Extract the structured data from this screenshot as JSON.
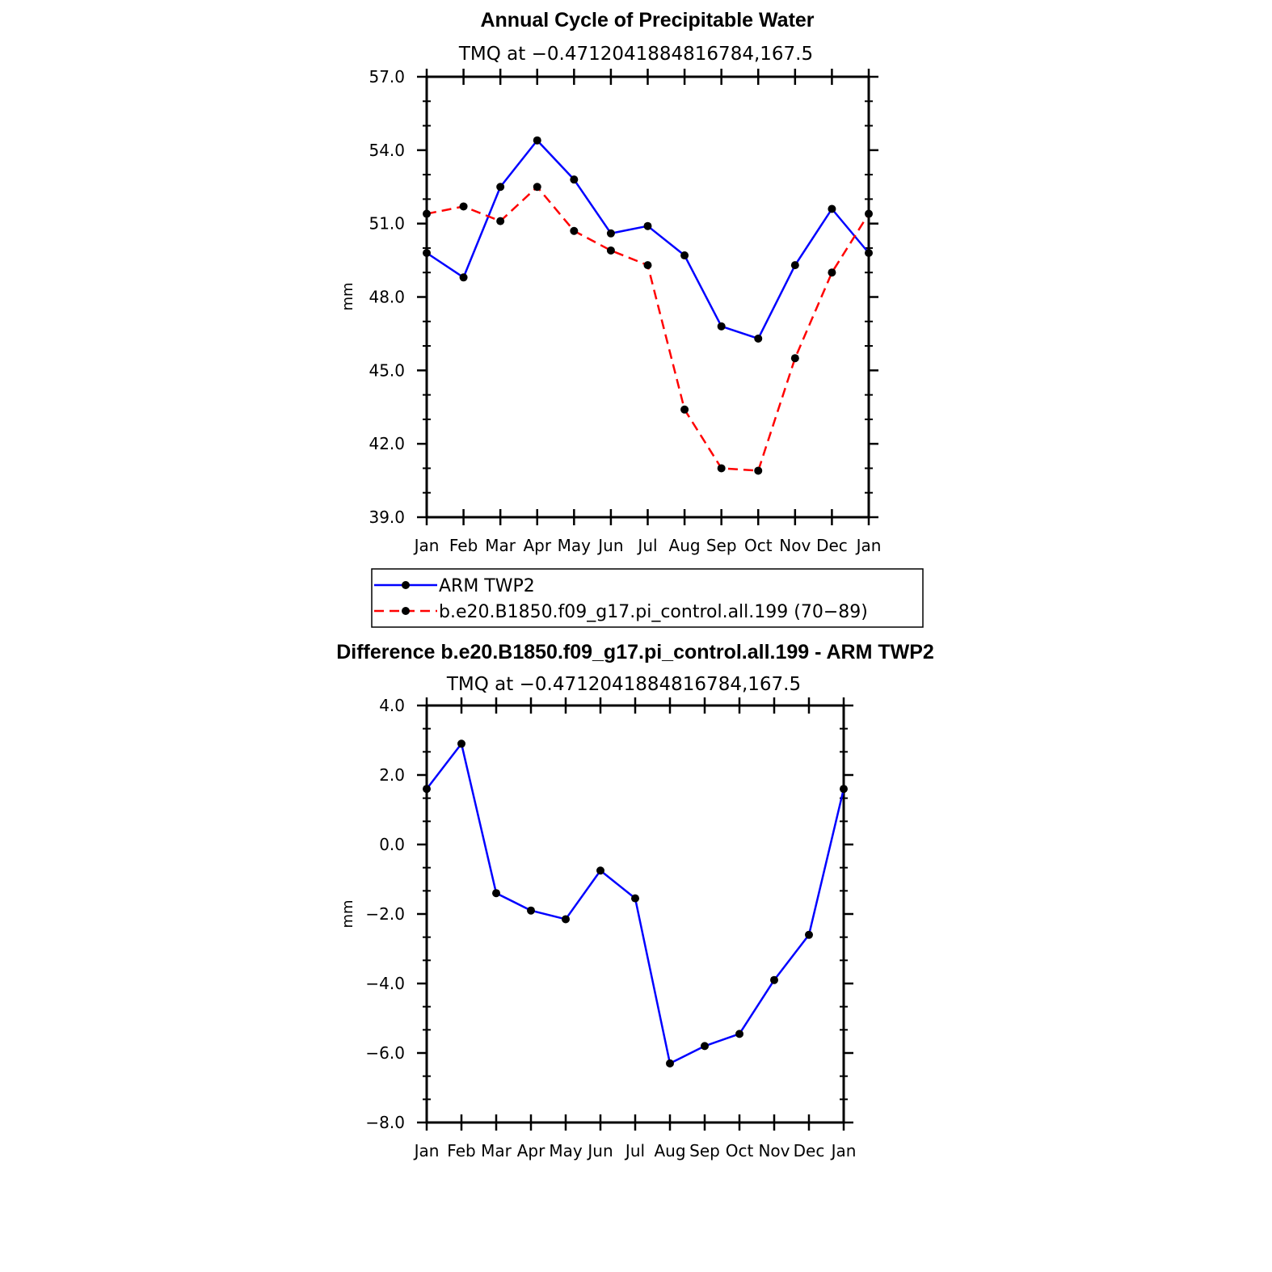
{
  "chart_data": [
    {
      "type": "line",
      "title": "Annual Cycle of Precipitable Water",
      "subtitle": "TMQ at −0.4712041884816784,167.5",
      "ylabel": "mm",
      "ylim": [
        39.0,
        57.0
      ],
      "yticks": [
        "39.0",
        "42.0",
        "45.0",
        "48.0",
        "51.0",
        "54.0",
        "57.0"
      ],
      "categories": [
        "Jan",
        "Feb",
        "Mar",
        "Apr",
        "May",
        "Jun",
        "Jul",
        "Aug",
        "Sep",
        "Oct",
        "Nov",
        "Dec",
        "Jan"
      ],
      "series": [
        {
          "name": "ARM TWP2",
          "color": "#0000ff",
          "dash": "solid",
          "values": [
            49.8,
            48.8,
            52.5,
            54.4,
            52.8,
            50.6,
            50.9,
            49.7,
            46.8,
            46.3,
            49.3,
            51.6,
            49.8
          ]
        },
        {
          "name": "b.e20.B1850.f09_g17.pi_control.all.199 (70−89)",
          "color": "#ff0000",
          "dash": "dashed",
          "values": [
            51.4,
            51.7,
            51.1,
            52.5,
            50.7,
            49.9,
            49.3,
            43.4,
            41.0,
            40.9,
            45.5,
            49.0,
            51.4
          ]
        }
      ],
      "legend": "bottom"
    },
    {
      "type": "line",
      "title": "Difference b.e20.B1850.f09_g17.pi_control.all.199 - ARM TWP2",
      "subtitle": "TMQ at −0.4712041884816784,167.5",
      "ylabel": "mm",
      "ylim": [
        -8.0,
        4.0
      ],
      "yticks": [
        "−8.0",
        "−6.0",
        "−4.0",
        "−2.0",
        "0.0",
        "2.0",
        "4.0"
      ],
      "categories": [
        "Jan",
        "Feb",
        "Mar",
        "Apr",
        "May",
        "Jun",
        "Jul",
        "Aug",
        "Sep",
        "Oct",
        "Nov",
        "Dec",
        "Jan"
      ],
      "series": [
        {
          "color": "#0000ff",
          "dash": "solid",
          "values": [
            1.6,
            2.9,
            -1.4,
            -1.9,
            -2.15,
            -0.75,
            -1.55,
            -6.3,
            -5.8,
            -5.45,
            -3.9,
            -2.6,
            1.6
          ]
        }
      ]
    }
  ]
}
